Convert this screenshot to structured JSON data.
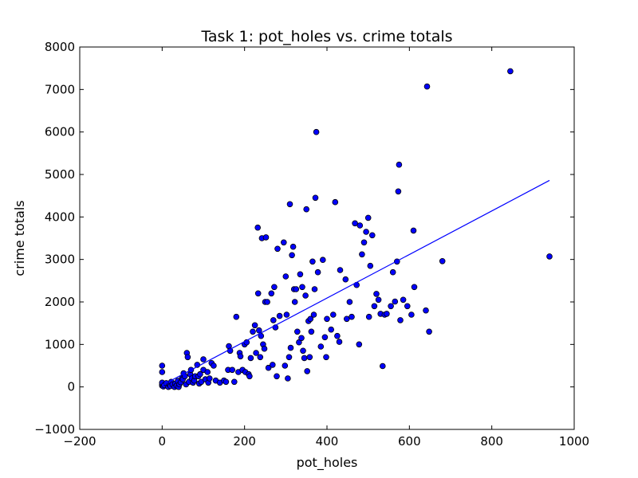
{
  "chart_data": {
    "type": "scatter",
    "title": "Task 1: pot_holes vs. crime totals",
    "xlabel": "pot_holes",
    "ylabel": "crime totals",
    "xlim": [
      -200,
      1000
    ],
    "ylim": [
      -1000,
      8000
    ],
    "xticks": [
      -200,
      0,
      200,
      400,
      600,
      800,
      1000
    ],
    "yticks": [
      -1000,
      0,
      1000,
      2000,
      3000,
      4000,
      5000,
      6000,
      7000,
      8000
    ],
    "x_tick_labels": [
      "−200",
      "0",
      "200",
      "400",
      "600",
      "800",
      "1000"
    ],
    "y_tick_labels": [
      "−1000",
      "0",
      "1000",
      "2000",
      "3000",
      "4000",
      "5000",
      "6000",
      "7000",
      "8000"
    ],
    "grid": false,
    "point_color": "#0000ff",
    "line_color": "#0000ff",
    "series": [
      {
        "type": "scatter",
        "points": [
          [
            0,
            30
          ],
          [
            0,
            60
          ],
          [
            0,
            100
          ],
          [
            0,
            350
          ],
          [
            0,
            500
          ],
          [
            3,
            10
          ],
          [
            5,
            40
          ],
          [
            10,
            90
          ],
          [
            15,
            0
          ],
          [
            18,
            50
          ],
          [
            20,
            20
          ],
          [
            22,
            120
          ],
          [
            25,
            60
          ],
          [
            30,
            0
          ],
          [
            32,
            80
          ],
          [
            35,
            30
          ],
          [
            38,
            140
          ],
          [
            40,
            0
          ],
          [
            42,
            60
          ],
          [
            45,
            110
          ],
          [
            48,
            200
          ],
          [
            50,
            180
          ],
          [
            52,
            320
          ],
          [
            55,
            250
          ],
          [
            58,
            60
          ],
          [
            60,
            800
          ],
          [
            62,
            700
          ],
          [
            65,
            120
          ],
          [
            68,
            300
          ],
          [
            70,
            400
          ],
          [
            72,
            200
          ],
          [
            75,
            100
          ],
          [
            78,
            150
          ],
          [
            80,
            250
          ],
          [
            85,
            520
          ],
          [
            88,
            250
          ],
          [
            90,
            80
          ],
          [
            92,
            300
          ],
          [
            95,
            120
          ],
          [
            100,
            650
          ],
          [
            100,
            400
          ],
          [
            105,
            180
          ],
          [
            110,
            350
          ],
          [
            112,
            100
          ],
          [
            115,
            200
          ],
          [
            120,
            560
          ],
          [
            125,
            500
          ],
          [
            130,
            150
          ],
          [
            140,
            100
          ],
          [
            150,
            150
          ],
          [
            155,
            120
          ],
          [
            160,
            400
          ],
          [
            162,
            960
          ],
          [
            165,
            850
          ],
          [
            170,
            400
          ],
          [
            175,
            120
          ],
          [
            180,
            1650
          ],
          [
            185,
            350
          ],
          [
            188,
            800
          ],
          [
            190,
            720
          ],
          [
            195,
            400
          ],
          [
            200,
            1000
          ],
          [
            202,
            350
          ],
          [
            205,
            1050
          ],
          [
            210,
            300
          ],
          [
            212,
            250
          ],
          [
            215,
            680
          ],
          [
            220,
            1300
          ],
          [
            225,
            1450
          ],
          [
            228,
            800
          ],
          [
            232,
            3750
          ],
          [
            233,
            2200
          ],
          [
            235,
            1330
          ],
          [
            238,
            700
          ],
          [
            240,
            1200
          ],
          [
            242,
            3500
          ],
          [
            245,
            1000
          ],
          [
            248,
            900
          ],
          [
            250,
            2000
          ],
          [
            252,
            3520
          ],
          [
            255,
            2000
          ],
          [
            258,
            450
          ],
          [
            265,
            2200
          ],
          [
            268,
            520
          ],
          [
            270,
            1570
          ],
          [
            272,
            2350
          ],
          [
            275,
            1400
          ],
          [
            278,
            250
          ],
          [
            280,
            3250
          ],
          [
            285,
            1670
          ],
          [
            295,
            3400
          ],
          [
            298,
            500
          ],
          [
            300,
            2600
          ],
          [
            302,
            1700
          ],
          [
            305,
            200
          ],
          [
            308,
            700
          ],
          [
            310,
            4300
          ],
          [
            312,
            920
          ],
          [
            315,
            3100
          ],
          [
            318,
            3300
          ],
          [
            320,
            2300
          ],
          [
            322,
            2000
          ],
          [
            325,
            2300
          ],
          [
            328,
            1300
          ],
          [
            332,
            1050
          ],
          [
            335,
            2650
          ],
          [
            338,
            1150
          ],
          [
            340,
            2350
          ],
          [
            342,
            850
          ],
          [
            345,
            680
          ],
          [
            348,
            2150
          ],
          [
            350,
            4180
          ],
          [
            352,
            370
          ],
          [
            355,
            1550
          ],
          [
            358,
            700
          ],
          [
            360,
            1600
          ],
          [
            362,
            1300
          ],
          [
            365,
            2950
          ],
          [
            368,
            1700
          ],
          [
            370,
            2300
          ],
          [
            372,
            4450
          ],
          [
            374,
            6000
          ],
          [
            378,
            2700
          ],
          [
            385,
            950
          ],
          [
            390,
            2990
          ],
          [
            395,
            1170
          ],
          [
            398,
            700
          ],
          [
            400,
            1600
          ],
          [
            410,
            1350
          ],
          [
            415,
            1700
          ],
          [
            420,
            4350
          ],
          [
            425,
            1200
          ],
          [
            430,
            1060
          ],
          [
            432,
            2750
          ],
          [
            445,
            2530
          ],
          [
            448,
            1600
          ],
          [
            455,
            2000
          ],
          [
            460,
            1650
          ],
          [
            468,
            3850
          ],
          [
            472,
            2400
          ],
          [
            478,
            1000
          ],
          [
            480,
            3800
          ],
          [
            485,
            3120
          ],
          [
            490,
            3400
          ],
          [
            495,
            3650
          ],
          [
            500,
            3980
          ],
          [
            502,
            1650
          ],
          [
            505,
            2850
          ],
          [
            510,
            3570
          ],
          [
            515,
            1900
          ],
          [
            520,
            2190
          ],
          [
            525,
            2050
          ],
          [
            530,
            1720
          ],
          [
            535,
            490
          ],
          [
            540,
            1700
          ],
          [
            545,
            1720
          ],
          [
            555,
            1900
          ],
          [
            560,
            2700
          ],
          [
            565,
            2010
          ],
          [
            570,
            2950
          ],
          [
            573,
            4600
          ],
          [
            575,
            5230
          ],
          [
            578,
            1570
          ],
          [
            585,
            2050
          ],
          [
            595,
            1900
          ],
          [
            605,
            1700
          ],
          [
            610,
            3680
          ],
          [
            612,
            2350
          ],
          [
            640,
            1800
          ],
          [
            643,
            7070
          ],
          [
            648,
            1300
          ],
          [
            680,
            2960
          ],
          [
            845,
            7430
          ],
          [
            940,
            3070
          ]
        ]
      },
      {
        "type": "line",
        "points": [
          [
            0,
            40
          ],
          [
            940,
            4860
          ]
        ]
      }
    ]
  }
}
